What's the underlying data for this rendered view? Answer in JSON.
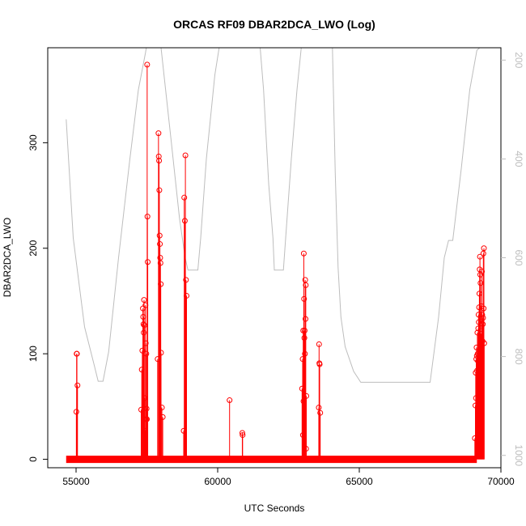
{
  "chart_data": {
    "type": "line",
    "title": "ORCAS RF09 DBAR2DCA_LWO (Log)",
    "xlabel": "UTC Seconds",
    "ylabel": "DBAR2DCA_LWO",
    "xlim": [
      54000,
      70000
    ],
    "ylim": [
      -8,
      390
    ],
    "x_ticks": [
      55000,
      60000,
      65000,
      70000
    ],
    "y_ticks": [
      0,
      100,
      200,
      300
    ],
    "y2_ticks": [
      200,
      400,
      600,
      800,
      1000
    ],
    "y2lim": [
      1025,
      175
    ],
    "grid": false,
    "legend": "none",
    "series": [
      {
        "color": "#ff0000",
        "baseline_x": [
          54650,
          69150
        ],
        "baseline_y": 0,
        "points": [
          [
            55020,
            100
          ],
          [
            55030,
            100
          ],
          [
            55010,
            45
          ],
          [
            55050,
            70
          ],
          [
            57300,
            47
          ],
          [
            57320,
            85
          ],
          [
            57340,
            103
          ],
          [
            57360,
            143
          ],
          [
            57370,
            135
          ],
          [
            57380,
            128
          ],
          [
            57390,
            120
          ],
          [
            57400,
            151
          ],
          [
            57410,
            127
          ],
          [
            57420,
            58
          ],
          [
            57430,
            27
          ],
          [
            57440,
            25
          ],
          [
            57450,
            146
          ],
          [
            57460,
            110
          ],
          [
            57470,
            38
          ],
          [
            57480,
            100
          ],
          [
            57490,
            48
          ],
          [
            57500,
            38
          ],
          [
            57510,
            374
          ],
          [
            57520,
            230
          ],
          [
            57530,
            187
          ],
          [
            57880,
            95
          ],
          [
            57910,
            309
          ],
          [
            57920,
            287
          ],
          [
            57930,
            283
          ],
          [
            57940,
            255
          ],
          [
            57950,
            212
          ],
          [
            57960,
            204
          ],
          [
            57970,
            191
          ],
          [
            57980,
            186
          ],
          [
            57990,
            166
          ],
          [
            58000,
            101
          ],
          [
            58030,
            49
          ],
          [
            58060,
            40
          ],
          [
            58800,
            27
          ],
          [
            58820,
            248
          ],
          [
            58840,
            226
          ],
          [
            58860,
            288
          ],
          [
            58880,
            170
          ],
          [
            58900,
            155
          ],
          [
            60420,
            56
          ],
          [
            60870,
            25
          ],
          [
            60880,
            23
          ],
          [
            62980,
            67
          ],
          [
            63000,
            95
          ],
          [
            63010,
            23
          ],
          [
            63020,
            122
          ],
          [
            63030,
            55
          ],
          [
            63040,
            195
          ],
          [
            63050,
            152
          ],
          [
            63060,
            115
          ],
          [
            63070,
            122
          ],
          [
            63080,
            100
          ],
          [
            63090,
            170
          ],
          [
            63100,
            133
          ],
          [
            63110,
            165
          ],
          [
            63120,
            10
          ],
          [
            63130,
            60
          ],
          [
            63570,
            49
          ],
          [
            63580,
            109
          ],
          [
            63590,
            91
          ],
          [
            63600,
            90
          ],
          [
            63620,
            44
          ],
          [
            69080,
            20
          ],
          [
            69100,
            51
          ],
          [
            69110,
            82
          ],
          [
            69120,
            58
          ],
          [
            69130,
            95
          ],
          [
            69140,
            106
          ],
          [
            69150,
            98
          ],
          [
            69160,
            84
          ],
          [
            69170,
            120
          ],
          [
            69180,
            100
          ],
          [
            69190,
            93
          ],
          [
            69200,
            124
          ],
          [
            69210,
            137
          ],
          [
            69220,
            130
          ],
          [
            69230,
            144
          ],
          [
            69240,
            157
          ],
          [
            69250,
            180
          ],
          [
            69260,
            192
          ],
          [
            69270,
            175
          ],
          [
            69280,
            167
          ],
          [
            69290,
            113
          ],
          [
            69300,
            119
          ],
          [
            69310,
            100
          ],
          [
            69320,
            145
          ],
          [
            69330,
            178
          ],
          [
            69340,
            137
          ],
          [
            69350,
            112
          ],
          [
            69360,
            128
          ],
          [
            69370,
            134
          ],
          [
            69380,
            195
          ],
          [
            69390,
            143
          ],
          [
            69400,
            200
          ],
          [
            69410,
            110
          ]
        ]
      },
      {
        "color": "#bdbdbd",
        "axis": "right",
        "points": [
          [
            54650,
            320
          ],
          [
            54900,
            560
          ],
          [
            55300,
            740
          ],
          [
            55650,
            820
          ],
          [
            55780,
            850
          ],
          [
            55950,
            850
          ],
          [
            56150,
            790
          ],
          [
            56500,
            600
          ],
          [
            56900,
            400
          ],
          [
            57200,
            260
          ],
          [
            57450,
            185
          ],
          [
            57480,
            175
          ],
          [
            58000,
            175
          ],
          [
            58350,
            360
          ],
          [
            58650,
            520
          ],
          [
            58850,
            600
          ],
          [
            58950,
            625
          ],
          [
            59300,
            625
          ],
          [
            59400,
            560
          ],
          [
            59600,
            400
          ],
          [
            59900,
            230
          ],
          [
            60050,
            175
          ],
          [
            61500,
            175
          ],
          [
            61620,
            260
          ],
          [
            61800,
            450
          ],
          [
            61950,
            560
          ],
          [
            62000,
            625
          ],
          [
            62320,
            625
          ],
          [
            62400,
            560
          ],
          [
            62600,
            400
          ],
          [
            62800,
            260
          ],
          [
            62950,
            175
          ],
          [
            64050,
            175
          ],
          [
            64150,
            430
          ],
          [
            64250,
            620
          ],
          [
            64350,
            720
          ],
          [
            64500,
            780
          ],
          [
            64800,
            830
          ],
          [
            65050,
            852
          ],
          [
            67500,
            852
          ],
          [
            67800,
            720
          ],
          [
            68000,
            600
          ],
          [
            68150,
            565
          ],
          [
            68300,
            565
          ],
          [
            68600,
            420
          ],
          [
            68900,
            260
          ],
          [
            69150,
            180
          ],
          [
            69250,
            175
          ]
        ]
      }
    ]
  }
}
